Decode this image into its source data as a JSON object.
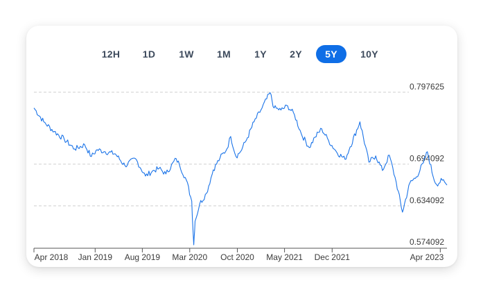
{
  "ranges": [
    {
      "label": "12H",
      "active": false
    },
    {
      "label": "1D",
      "active": false
    },
    {
      "label": "1W",
      "active": false
    },
    {
      "label": "1M",
      "active": false
    },
    {
      "label": "1Y",
      "active": false
    },
    {
      "label": "2Y",
      "active": false
    },
    {
      "label": "5Y",
      "active": true
    },
    {
      "label": "10Y",
      "active": false
    }
  ],
  "chart_data": {
    "type": "line",
    "line_color": "#1a73e8",
    "active_color": "#0f6ee6",
    "grid": "dashed horizontal",
    "ylim": [
      0.574092,
      0.797625
    ],
    "yticks": [
      {
        "value": 0.797625,
        "label": "0.797625"
      },
      {
        "value": 0.694092,
        "label": "0.694092"
      },
      {
        "value": 0.634092,
        "label": "0.634092"
      },
      {
        "value": 0.574092,
        "label": "0.574092"
      }
    ],
    "xticks": [
      {
        "date": "2018-04-01",
        "label": "Apr 2018"
      },
      {
        "date": "2019-01-01",
        "label": "Jan 2019"
      },
      {
        "date": "2019-08-01",
        "label": "Aug 2019"
      },
      {
        "date": "2020-03-01",
        "label": "Mar 2020"
      },
      {
        "date": "2020-10-01",
        "label": "Oct 2020"
      },
      {
        "date": "2021-05-01",
        "label": "May 2021"
      },
      {
        "date": "2021-12-01",
        "label": "Dec 2021"
      },
      {
        "date": "2023-04-01",
        "label": "Apr 2023"
      }
    ],
    "series": [
      {
        "points": [
          [
            "2018-04-01",
            0.775
          ],
          [
            "2018-05-15",
            0.755
          ],
          [
            "2018-07-01",
            0.741
          ],
          [
            "2018-08-15",
            0.73
          ],
          [
            "2018-10-01",
            0.716
          ],
          [
            "2018-11-15",
            0.722
          ],
          [
            "2018-12-15",
            0.705
          ],
          [
            "2019-01-10",
            0.715
          ],
          [
            "2019-02-15",
            0.712
          ],
          [
            "2019-04-01",
            0.709
          ],
          [
            "2019-05-15",
            0.692
          ],
          [
            "2019-07-01",
            0.702
          ],
          [
            "2019-08-15",
            0.677
          ],
          [
            "2019-09-15",
            0.684
          ],
          [
            "2019-10-15",
            0.688
          ],
          [
            "2019-11-15",
            0.68
          ],
          [
            "2019-12-31",
            0.702
          ],
          [
            "2020-01-15",
            0.693
          ],
          [
            "2020-02-15",
            0.671
          ],
          [
            "2020-03-10",
            0.641
          ],
          [
            "2020-03-19",
            0.578
          ],
          [
            "2020-03-25",
            0.612
          ],
          [
            "2020-04-15",
            0.637
          ],
          [
            "2020-05-15",
            0.652
          ],
          [
            "2020-06-15",
            0.686
          ],
          [
            "2020-07-15",
            0.703
          ],
          [
            "2020-08-15",
            0.716
          ],
          [
            "2020-09-01",
            0.734
          ],
          [
            "2020-09-25",
            0.705
          ],
          [
            "2020-10-15",
            0.712
          ],
          [
            "2020-11-15",
            0.732
          ],
          [
            "2020-12-15",
            0.755
          ],
          [
            "2021-01-15",
            0.772
          ],
          [
            "2021-02-25",
            0.797
          ],
          [
            "2021-03-15",
            0.775
          ],
          [
            "2021-04-15",
            0.772
          ],
          [
            "2021-05-15",
            0.778
          ],
          [
            "2021-06-15",
            0.765
          ],
          [
            "2021-07-15",
            0.738
          ],
          [
            "2021-08-20",
            0.718
          ],
          [
            "2021-09-15",
            0.733
          ],
          [
            "2021-10-15",
            0.745
          ],
          [
            "2021-11-15",
            0.728
          ],
          [
            "2021-12-20",
            0.712
          ],
          [
            "2022-01-28",
            0.701
          ],
          [
            "2022-02-20",
            0.719
          ],
          [
            "2022-04-05",
            0.755
          ],
          [
            "2022-05-15",
            0.697
          ],
          [
            "2022-06-15",
            0.706
          ],
          [
            "2022-07-15",
            0.685
          ],
          [
            "2022-08-15",
            0.707
          ],
          [
            "2022-09-15",
            0.668
          ],
          [
            "2022-10-13",
            0.625
          ],
          [
            "2022-11-15",
            0.667
          ],
          [
            "2022-12-15",
            0.676
          ],
          [
            "2023-01-15",
            0.696
          ],
          [
            "2023-02-02",
            0.712
          ],
          [
            "2023-02-28",
            0.676
          ],
          [
            "2023-03-15",
            0.665
          ],
          [
            "2023-04-10",
            0.671
          ],
          [
            "2023-05-01",
            0.664
          ]
        ]
      }
    ]
  }
}
